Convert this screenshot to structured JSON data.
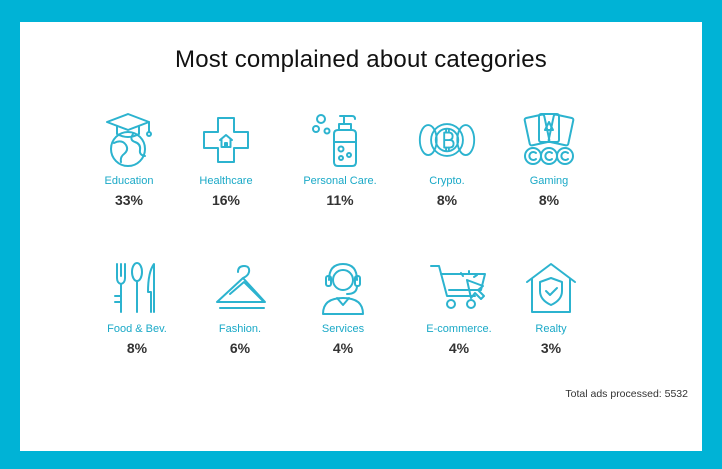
{
  "title": "Most complained about categories",
  "accent_color": "#2cb3cf",
  "background_color": "#00b3d6",
  "categories": [
    {
      "label": "Education",
      "value": "33%",
      "icon": "graduation-globe-icon"
    },
    {
      "label": "Healthcare",
      "value": "16%",
      "icon": "medical-cross-icon"
    },
    {
      "label": "Personal Care.",
      "value": "11%",
      "icon": "soap-bottle-icon"
    },
    {
      "label": "Crypto.",
      "value": "8%",
      "icon": "bitcoin-coins-icon"
    },
    {
      "label": "Gaming",
      "value": "8%",
      "icon": "cards-chips-icon"
    },
    {
      "label": "Food & Bev.",
      "value": "8%",
      "icon": "cutlery-icon"
    },
    {
      "label": "Fashion.",
      "value": "6%",
      "icon": "hangers-icon"
    },
    {
      "label": "Services",
      "value": "4%",
      "icon": "headset-agent-icon"
    },
    {
      "label": "E-commerce.",
      "value": "4%",
      "icon": "shopping-cart-icon"
    },
    {
      "label": "Realty",
      "value": "3%",
      "icon": "house-shield-icon"
    }
  ],
  "footer": "Total ads processed: 5532"
}
